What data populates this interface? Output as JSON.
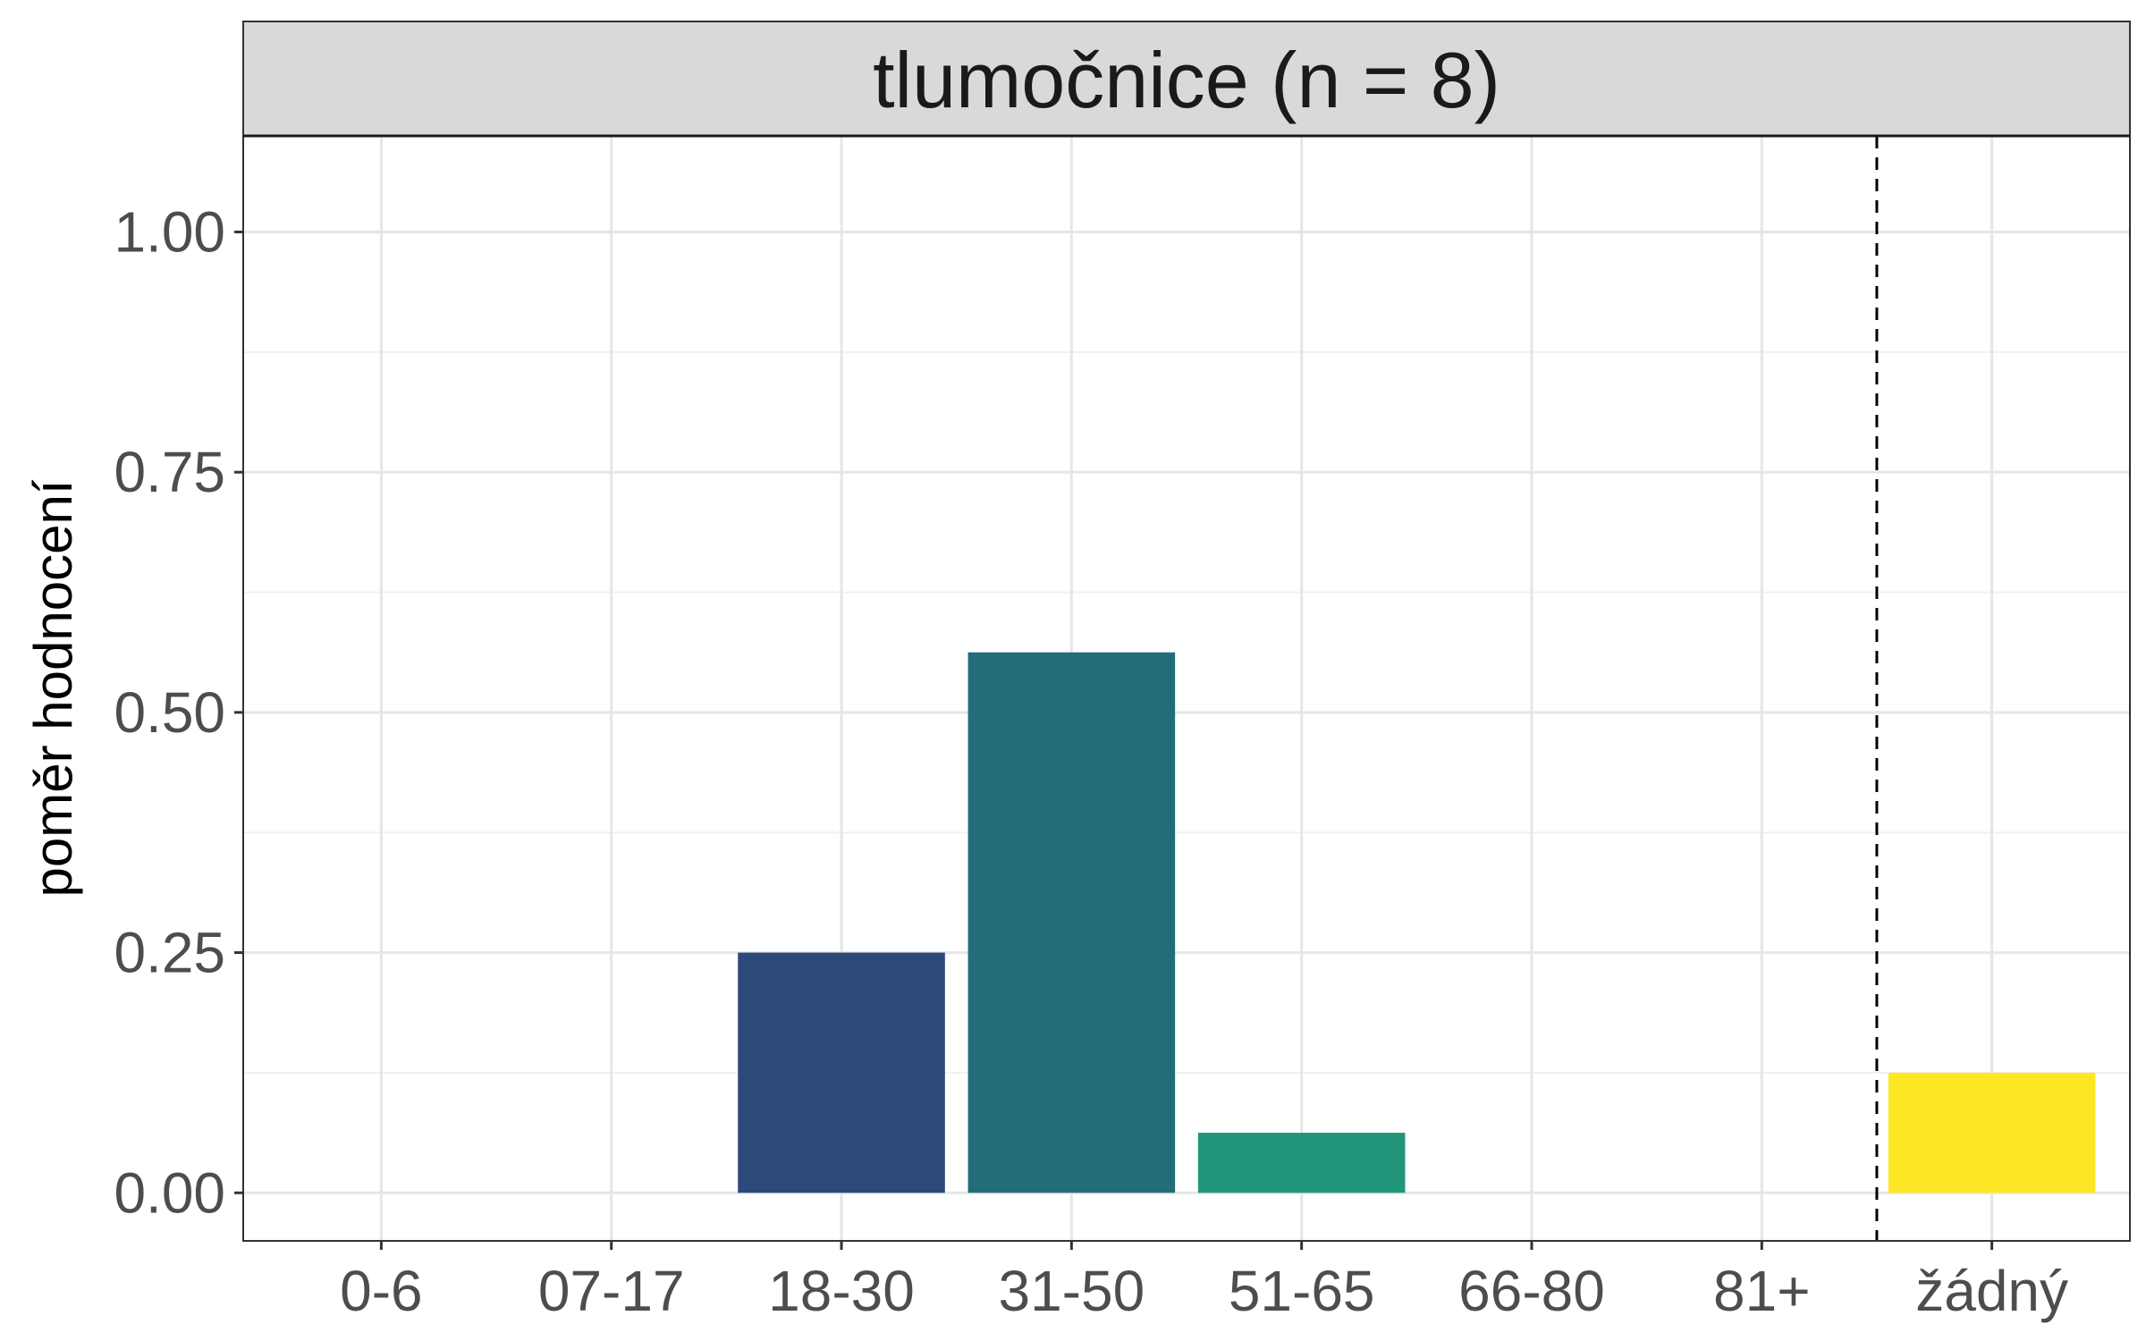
{
  "chart_data": {
    "type": "bar",
    "facet_title": "tlumočnice (n = 8)",
    "categories": [
      "0-6",
      "07-17",
      "18-30",
      "31-50",
      "51-65",
      "66-80",
      "81+",
      "žádný"
    ],
    "values": [
      0,
      0,
      0.25,
      0.5625,
      0.0625,
      0,
      0,
      0.125
    ],
    "colors": [
      "#440154",
      "#46327e",
      "#2b4a7a",
      "#216e7a",
      "#21957a",
      "#5ec962",
      "#addc30",
      "#fde725"
    ],
    "xlabel": "",
    "ylabel": "poměr hodnocení",
    "ylim": [
      -0.05,
      1.1
    ],
    "yticks": [
      0,
      0.25,
      0.5,
      0.75,
      1
    ],
    "ytick_labels": [
      "0.00",
      "0.25",
      "0.50",
      "0.75",
      "1.00"
    ],
    "reference_line": {
      "style": "dashed",
      "x": 7.5
    },
    "grid": true
  }
}
